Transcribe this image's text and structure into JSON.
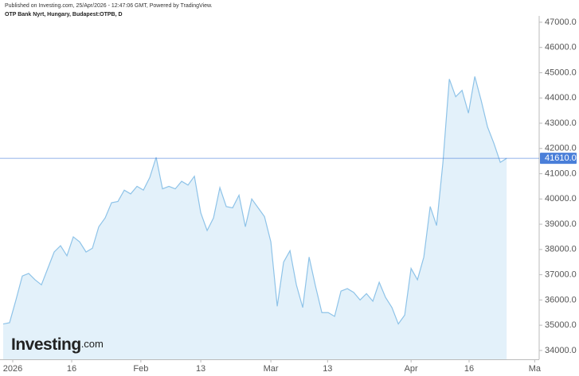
{
  "chart_data": {
    "type": "area",
    "published": "Published on Investing.com, 25/Apr/2026 - 12:47:06 GMT, Powered by TradingView.",
    "title": "OTP Bank Nyrt, Hungary, Budapest:OTPB, D",
    "watermark": [
      "Investing",
      ".com"
    ],
    "color": "#8ec3e8",
    "fill": "#e3f1fa",
    "values": [
      35050,
      35100,
      36000,
      36950,
      37050,
      36800,
      36600,
      37250,
      37900,
      38150,
      37750,
      38500,
      38300,
      37900,
      38050,
      38900,
      39250,
      39850,
      39900,
      40350,
      40200,
      40500,
      40350,
      40850,
      41650,
      40400,
      40500,
      40400,
      40700,
      40550,
      40900,
      39450,
      38750,
      39250,
      40450,
      39700,
      39650,
      40150,
      38900,
      40000,
      39650,
      39300,
      38300,
      35750,
      37500,
      37950,
      36600,
      35700,
      37700,
      36550,
      35500,
      35500,
      35350,
      36350,
      36450,
      36300,
      36000,
      36250,
      35950,
      36700,
      36100,
      35700,
      35050,
      35400,
      37250,
      36800,
      37700,
      39700,
      38950,
      41450,
      44750,
      44050,
      44300,
      43400,
      44850,
      43900,
      42850,
      42200,
      41450,
      41610
    ],
    "price_line": {
      "value": 41610,
      "label": "41610.0",
      "color": "#4a7fd9"
    },
    "xlim": [
      0,
      84.1
    ],
    "xticks": [
      {
        "value": 1.5,
        "label": "2026"
      },
      {
        "value": 10.75,
        "label": "16"
      },
      {
        "value": 21.6,
        "label": "Feb"
      },
      {
        "value": 31,
        "label": "13"
      },
      {
        "value": 42,
        "label": "Mar"
      },
      {
        "value": 50.9,
        "label": "13"
      },
      {
        "value": 64,
        "label": "Apr"
      },
      {
        "value": 73.1,
        "label": "16"
      },
      {
        "value": 83.4,
        "label": "Ma"
      }
    ],
    "ylim": [
      33650,
      47250
    ],
    "yticks": [
      {
        "value": 34000,
        "label": "34000.0"
      },
      {
        "value": 35000,
        "label": "35000.0"
      },
      {
        "value": 36000,
        "label": "36000.0"
      },
      {
        "value": 37000,
        "label": "37000.0"
      },
      {
        "value": 38000,
        "label": "38000.0"
      },
      {
        "value": 39000,
        "label": "39000.0"
      },
      {
        "value": 40000,
        "label": "40000.0"
      },
      {
        "value": 41000,
        "label": "41000.0"
      },
      {
        "value": 42000,
        "label": "42000.0"
      },
      {
        "value": 43000,
        "label": "43000.0"
      },
      {
        "value": 44000,
        "label": "44000.0"
      },
      {
        "value": 45000,
        "label": "45000.0"
      },
      {
        "value": 46000,
        "label": "46000.0"
      },
      {
        "value": 47000,
        "label": "47000.0"
      }
    ]
  }
}
